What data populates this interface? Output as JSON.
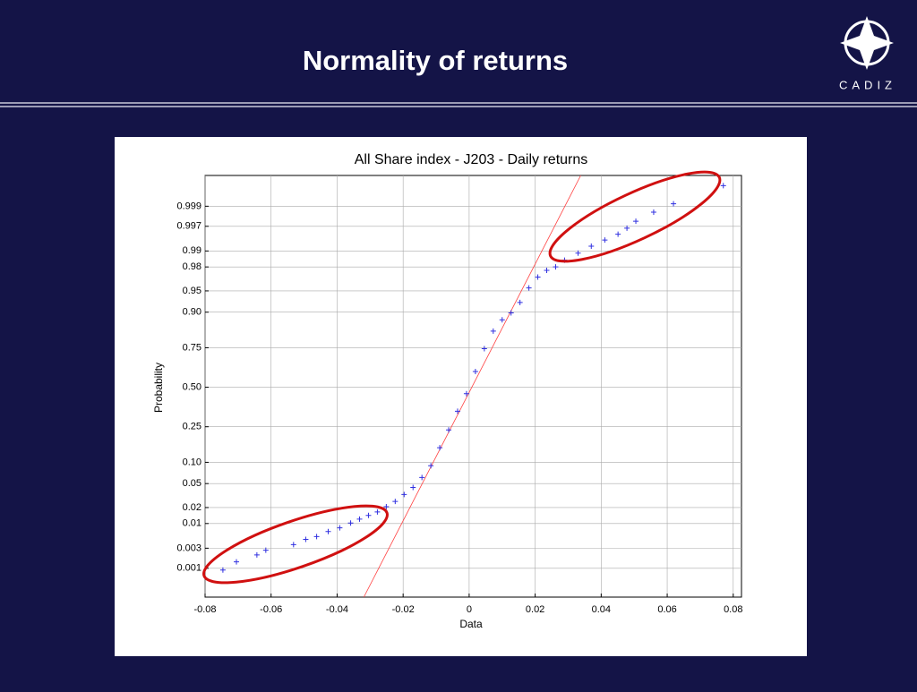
{
  "slide": {
    "title": "Normality of returns",
    "logo_text": "CADIZ"
  },
  "chart_data": {
    "type": "normal-probability",
    "title": "All Share index - J203 - Daily returns",
    "x_label": "Data",
    "y_label": "Probability",
    "yscale": "normal-probability",
    "grid": true,
    "xlim": [
      -0.08,
      0.0825
    ],
    "ylim": [
      0.00017,
      0.99985
    ],
    "xticks": [
      -0.08,
      -0.06,
      -0.04,
      -0.02,
      0,
      0.02,
      0.04,
      0.06,
      0.08
    ],
    "yticks": [
      0.001,
      0.003,
      0.01,
      0.02,
      0.05,
      {
        "value": 0.1,
        "label": "0.10"
      },
      0.25,
      {
        "value": 0.5,
        "label": "0.50"
      },
      0.75,
      {
        "value": 0.9,
        "label": "0.90"
      },
      0.95,
      0.98,
      0.99,
      0.997,
      0.999
    ],
    "series": [
      {
        "color": "#3030e0",
        "x": [
          -0.0746,
          -0.0705,
          -0.0643,
          -0.0616,
          -0.0532,
          -0.0495,
          -0.0462,
          -0.0427,
          -0.0392,
          -0.0359,
          -0.0332,
          -0.0305,
          -0.0278,
          -0.0251,
          -0.0224,
          -0.0197,
          -0.017,
          -0.0143,
          -0.0116,
          -0.0089,
          -0.0062,
          -0.0035,
          -0.0008,
          0.0019,
          0.0046,
          0.0073,
          0.01,
          0.0127,
          0.0154,
          0.0181,
          0.0208,
          0.0235,
          0.0262,
          0.0289,
          0.033,
          0.037,
          0.0411,
          0.0451,
          0.0478,
          0.0505,
          0.0559,
          0.0619,
          0.077
        ],
        "values": [
          0.0009,
          0.00144,
          0.0021,
          0.0027,
          0.0036,
          0.0047,
          0.0054,
          0.0069,
          0.0082,
          0.0102,
          0.0122,
          0.0143,
          0.0166,
          0.0207,
          0.0256,
          0.0336,
          0.0436,
          0.0618,
          0.09,
          0.151,
          0.233,
          0.341,
          0.456,
          0.606,
          0.745,
          0.831,
          0.875,
          0.898,
          0.926,
          0.955,
          0.97,
          0.977,
          0.98,
          0.985,
          0.989,
          0.992,
          0.994,
          0.9955,
          0.9967,
          0.9977,
          0.9986,
          0.99913,
          0.99971
        ]
      }
    ],
    "reference_line": {
      "color": "#ff4040",
      "x": [
        -0.0319,
        0.0338
      ],
      "values": [
        0.00017,
        0.99985
      ]
    }
  }
}
